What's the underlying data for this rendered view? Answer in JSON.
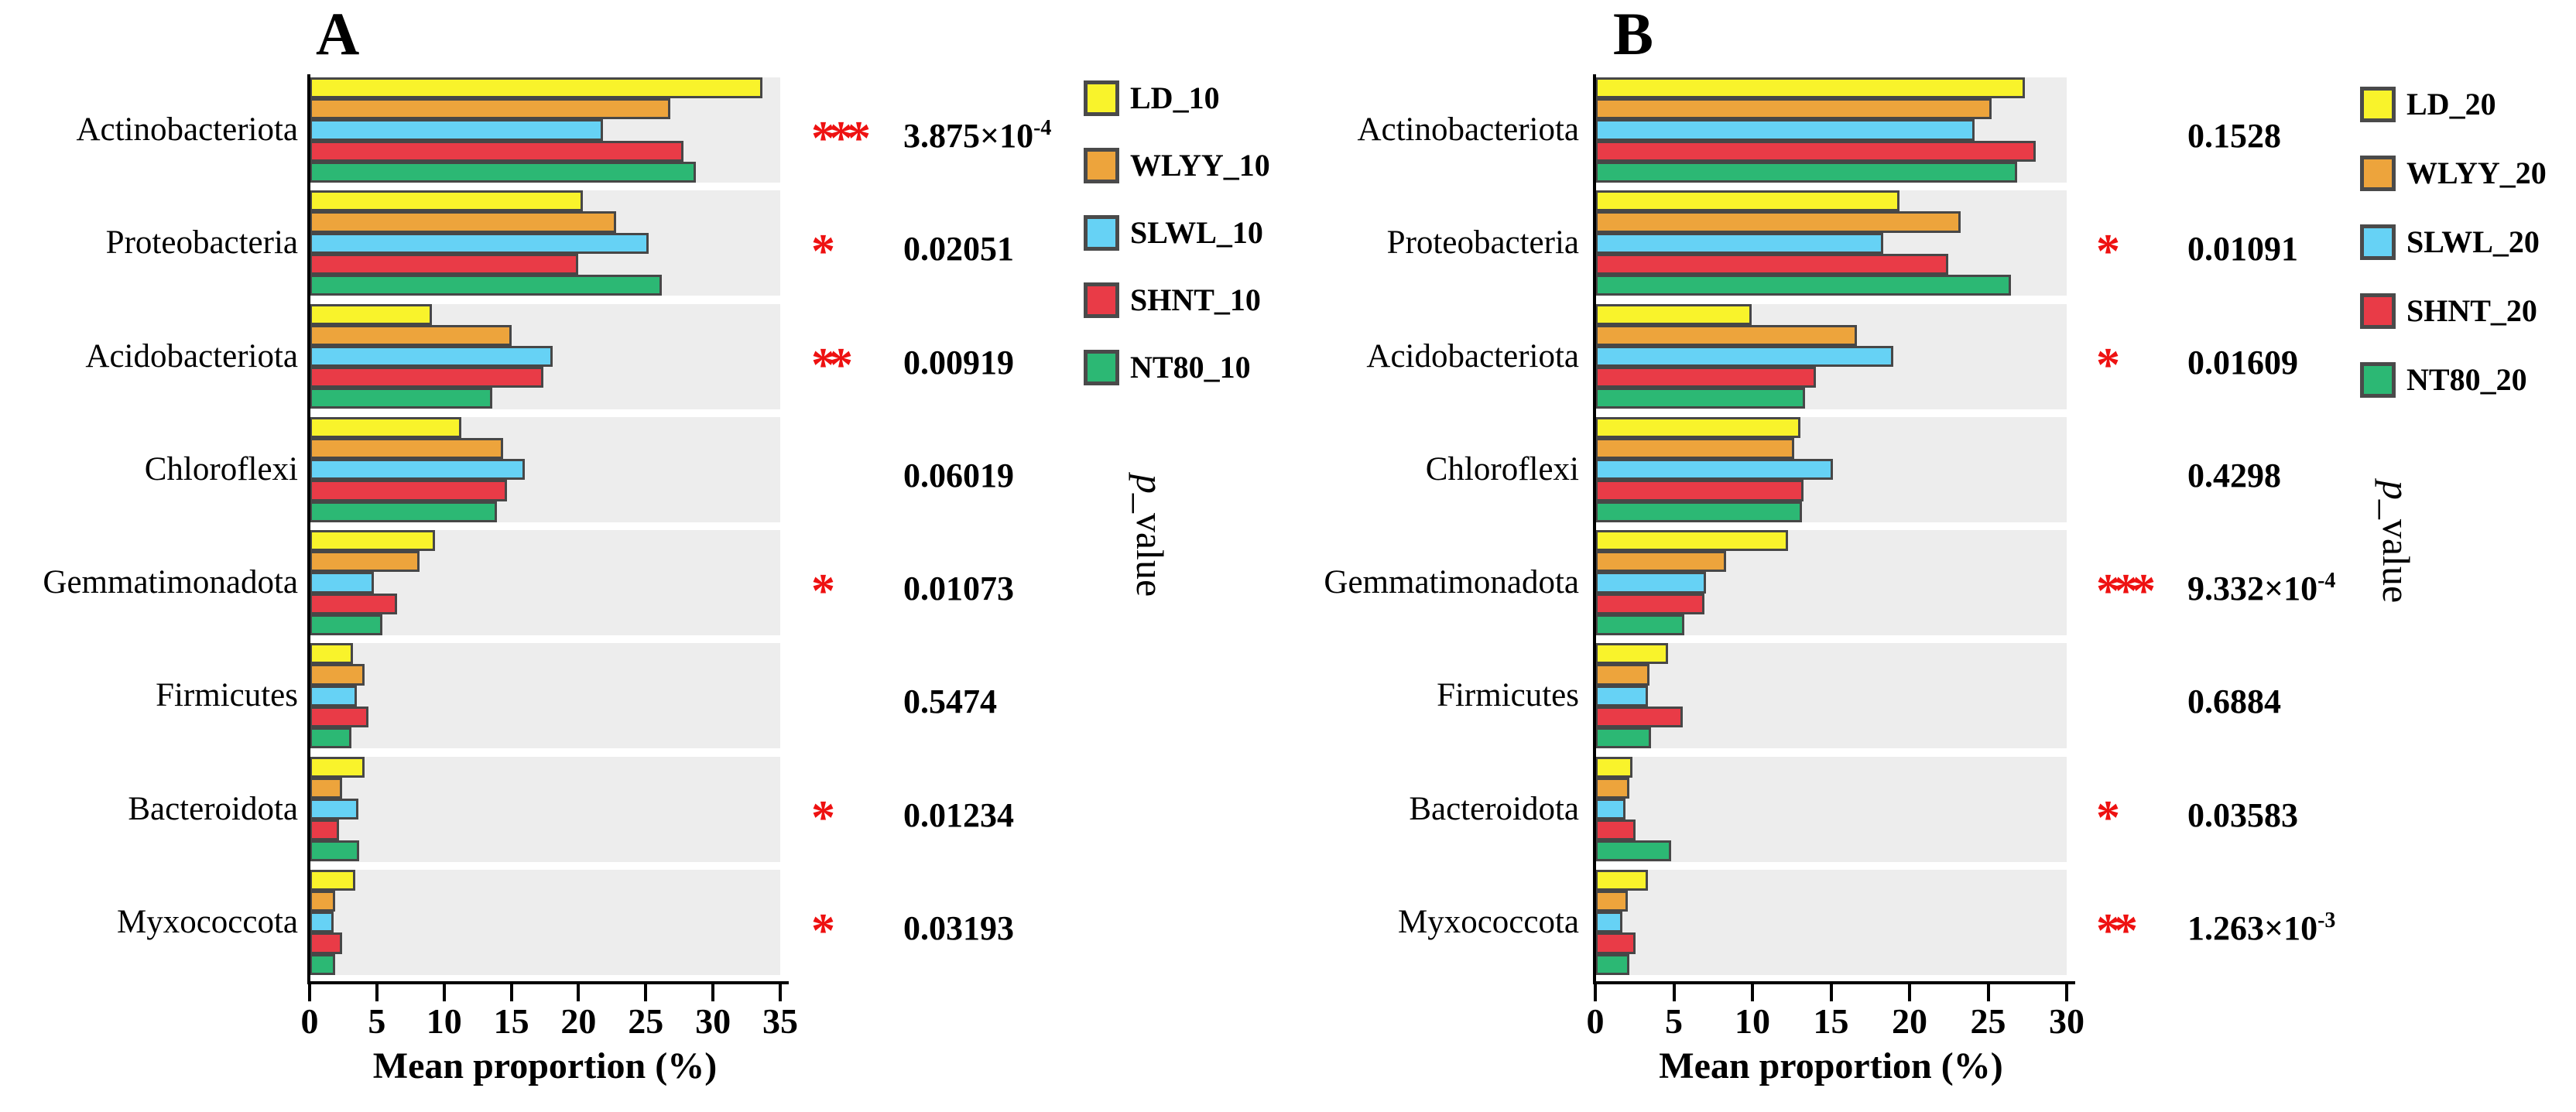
{
  "colors": {
    "band_background": "#EDEDED",
    "bar_border": "#474747",
    "axis": "#000000",
    "star_red": "#EE1111",
    "text": "#000000"
  },
  "chart_data": {
    "type": "bar",
    "orientation": "horizontal",
    "grid": false,
    "panels": [
      {
        "title": "A",
        "categories": [
          "Actinobacteriota",
          "Proteobacteria",
          "Acidobacteriota",
          "Chloroflexi",
          "Gemmatimonadota",
          "Firmicutes",
          "Bacteroidota",
          "Myxococcota"
        ],
        "series": [
          {
            "name": "LD_10",
            "color": "#F9F32B",
            "values": [
              33.3,
              19.9,
              8.7,
              10.9,
              8.9,
              2.8,
              3.7,
              3.0
            ]
          },
          {
            "name": "WLYY_10",
            "color": "#EDA43C",
            "values": [
              26.4,
              22.4,
              14.6,
              14.0,
              7.8,
              3.7,
              2.0,
              1.5
            ]
          },
          {
            "name": "SLWL_10",
            "color": "#66D2F5",
            "values": [
              21.4,
              24.8,
              17.7,
              15.6,
              4.4,
              3.1,
              3.2,
              1.4
            ]
          },
          {
            "name": "SHNT_10",
            "color": "#E93B47",
            "values": [
              27.4,
              19.6,
              17.0,
              14.3,
              6.1,
              4.0,
              1.8,
              2.0
            ]
          },
          {
            "name": "NT80_10",
            "color": "#2CB874",
            "values": [
              28.3,
              25.8,
              13.2,
              13.5,
              5.0,
              2.7,
              3.3,
              1.5
            ]
          }
        ],
        "significance": [
          "***",
          "*",
          "**",
          "",
          "*",
          "",
          "*",
          "*"
        ],
        "p_values": [
          {
            "base": "3.875×10",
            "exp": "-4"
          },
          {
            "base": "0.02051",
            "exp": ""
          },
          {
            "base": "0.00919",
            "exp": ""
          },
          {
            "base": "0.06019",
            "exp": ""
          },
          {
            "base": "0.01073",
            "exp": ""
          },
          {
            "base": "0.5474",
            "exp": ""
          },
          {
            "base": "0.01234",
            "exp": ""
          },
          {
            "base": "0.03193",
            "exp": ""
          }
        ],
        "x_axis": {
          "label": "Mean proportion (%)",
          "ticks": [
            0,
            5,
            10,
            15,
            20,
            25,
            30,
            35
          ],
          "xlim": [
            0,
            35
          ]
        },
        "right_axis_label": {
          "italic": "p",
          "rest": "_value"
        }
      },
      {
        "title": "B",
        "categories": [
          "Actinobacteriota",
          "Proteobacteria",
          "Acidobacteriota",
          "Chloroflexi",
          "Gemmatimonadota",
          "Firmicutes",
          "Bacteroidota",
          "Myxococcota"
        ],
        "series": [
          {
            "name": "LD_20",
            "color": "#F9F32B",
            "values": [
              27.0,
              19.0,
              9.6,
              12.7,
              11.9,
              4.3,
              2.0,
              3.0
            ]
          },
          {
            "name": "WLYY_20",
            "color": "#EDA43C",
            "values": [
              24.9,
              22.9,
              16.3,
              12.3,
              8.0,
              3.1,
              1.8,
              1.7
            ]
          },
          {
            "name": "SLWL_20",
            "color": "#66D2F5",
            "values": [
              23.8,
              18.0,
              18.6,
              14.8,
              6.7,
              3.0,
              1.6,
              1.4
            ]
          },
          {
            "name": "SHNT_20",
            "color": "#E93B47",
            "values": [
              27.7,
              22.1,
              13.7,
              12.9,
              6.6,
              5.2,
              2.2,
              2.2
            ]
          },
          {
            "name": "NT80_20",
            "color": "#2CB874",
            "values": [
              26.5,
              26.1,
              13.0,
              12.8,
              5.3,
              3.2,
              4.5,
              1.8
            ]
          }
        ],
        "significance": [
          "",
          "*",
          "*",
          "",
          "***",
          "",
          "*",
          "**"
        ],
        "p_values": [
          {
            "base": "0.1528",
            "exp": ""
          },
          {
            "base": "0.01091",
            "exp": ""
          },
          {
            "base": "0.01609",
            "exp": ""
          },
          {
            "base": "0.4298",
            "exp": ""
          },
          {
            "base": "9.332×10",
            "exp": "-4"
          },
          {
            "base": "0.6884",
            "exp": ""
          },
          {
            "base": "0.03583",
            "exp": ""
          },
          {
            "base": "1.263×10",
            "exp": "-3"
          }
        ],
        "x_axis": {
          "label": "Mean proportion (%)",
          "ticks": [
            0,
            5,
            10,
            15,
            20,
            25,
            30
          ],
          "xlim": [
            0,
            30
          ]
        },
        "right_axis_label": {
          "italic": "p",
          "rest": "_value"
        }
      }
    ]
  }
}
